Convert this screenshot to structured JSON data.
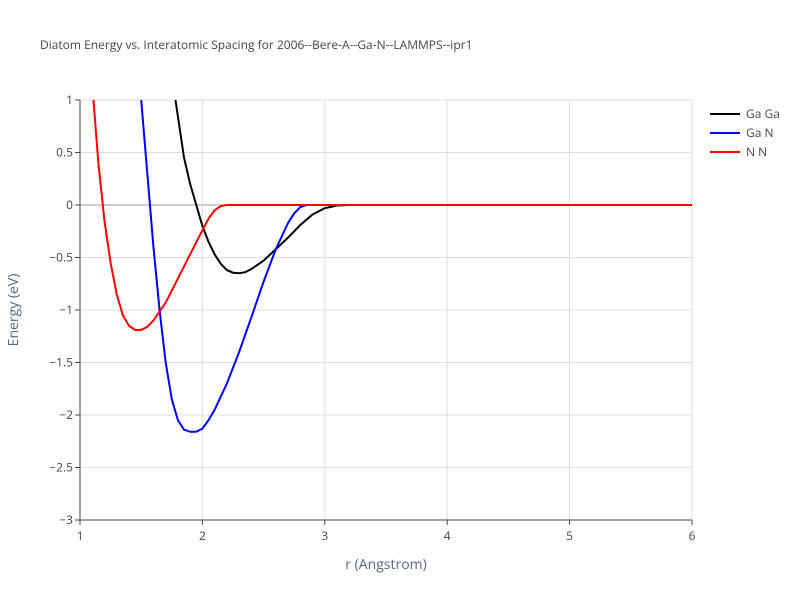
{
  "chart_data": {
    "type": "line",
    "title": "Diatom Energy vs. Interatomic Spacing for 2006--Bere-A--Ga-N--LAMMPS--ipr1",
    "x_label": "r (Angstrom)",
    "y_label": "Energy (eV)",
    "xlim": [
      1,
      6
    ],
    "xticks": [
      1,
      2,
      3,
      4,
      5,
      6
    ],
    "ylim": [
      -3,
      1
    ],
    "yticks": [
      {
        "value": -3,
        "label": "−3"
      },
      {
        "value": -2.5,
        "label": "−2.5"
      },
      {
        "value": -2,
        "label": "−2"
      },
      {
        "value": -1.5,
        "label": "−1.5"
      },
      {
        "value": -1,
        "label": "−1"
      },
      {
        "value": -0.5,
        "label": "−0.5"
      },
      0,
      0.5,
      1
    ],
    "grid": true,
    "legend": "top-right",
    "series": [
      {
        "name": "Ga Ga",
        "color": "#000000",
        "x": [
          1.78,
          1.85,
          1.9,
          1.95,
          2.0,
          2.05,
          2.1,
          2.15,
          2.2,
          2.25,
          2.3,
          2.35,
          2.4,
          2.5,
          2.6,
          2.7,
          2.8,
          2.9,
          3.0,
          3.1,
          3.2,
          6
        ],
        "values": [
          1,
          0.45,
          0.2,
          0,
          -0.2,
          -0.35,
          -0.47,
          -0.56,
          -0.62,
          -0.645,
          -0.65,
          -0.64,
          -0.61,
          -0.53,
          -0.42,
          -0.31,
          -0.19,
          -0.09,
          -0.03,
          -0.005,
          0,
          0
        ]
      },
      {
        "name": "Ga N",
        "color": "#0000ff",
        "x": [
          1.5,
          1.55,
          1.6,
          1.65,
          1.7,
          1.75,
          1.8,
          1.85,
          1.9,
          1.95,
          2.0,
          2.05,
          2.1,
          2.2,
          2.3,
          2.4,
          2.5,
          2.6,
          2.7,
          2.75,
          2.8,
          2.85,
          6
        ],
        "values": [
          1,
          0.3,
          -0.4,
          -1.0,
          -1.5,
          -1.85,
          -2.05,
          -2.14,
          -2.16,
          -2.16,
          -2.13,
          -2.05,
          -1.95,
          -1.7,
          -1.4,
          -1.07,
          -0.73,
          -0.42,
          -0.17,
          -0.08,
          -0.02,
          0,
          0
        ]
      },
      {
        "name": "N N",
        "color": "#ff0000",
        "x": [
          1.11,
          1.15,
          1.2,
          1.25,
          1.3,
          1.35,
          1.4,
          1.45,
          1.5,
          1.55,
          1.6,
          1.7,
          1.8,
          1.9,
          2.0,
          2.05,
          2.1,
          2.15,
          2.2,
          6
        ],
        "values": [
          1,
          0.4,
          -0.15,
          -0.55,
          -0.85,
          -1.05,
          -1.15,
          -1.19,
          -1.19,
          -1.16,
          -1.1,
          -0.93,
          -0.7,
          -0.47,
          -0.24,
          -0.13,
          -0.05,
          -0.01,
          0,
          0
        ]
      }
    ]
  }
}
